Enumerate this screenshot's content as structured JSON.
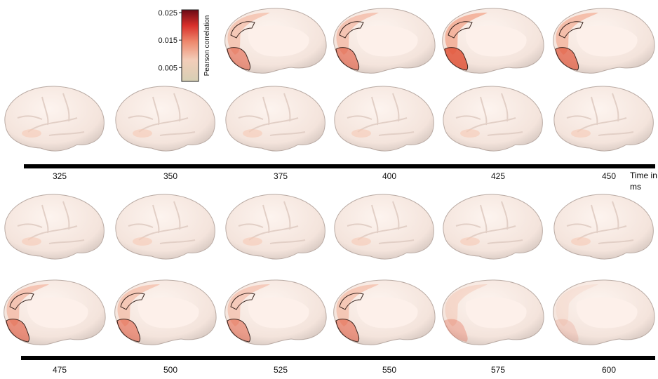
{
  "colorbar": {
    "label": "Pearson correlation",
    "lim": [
      0,
      0.026
    ],
    "ticks": [
      0.005,
      0.015,
      0.025
    ]
  },
  "time_axis": {
    "label": "Time in ms",
    "rows": [
      [
        325,
        350,
        375,
        400,
        425,
        450
      ],
      [
        475,
        500,
        525,
        550,
        575,
        600
      ]
    ]
  }
}
